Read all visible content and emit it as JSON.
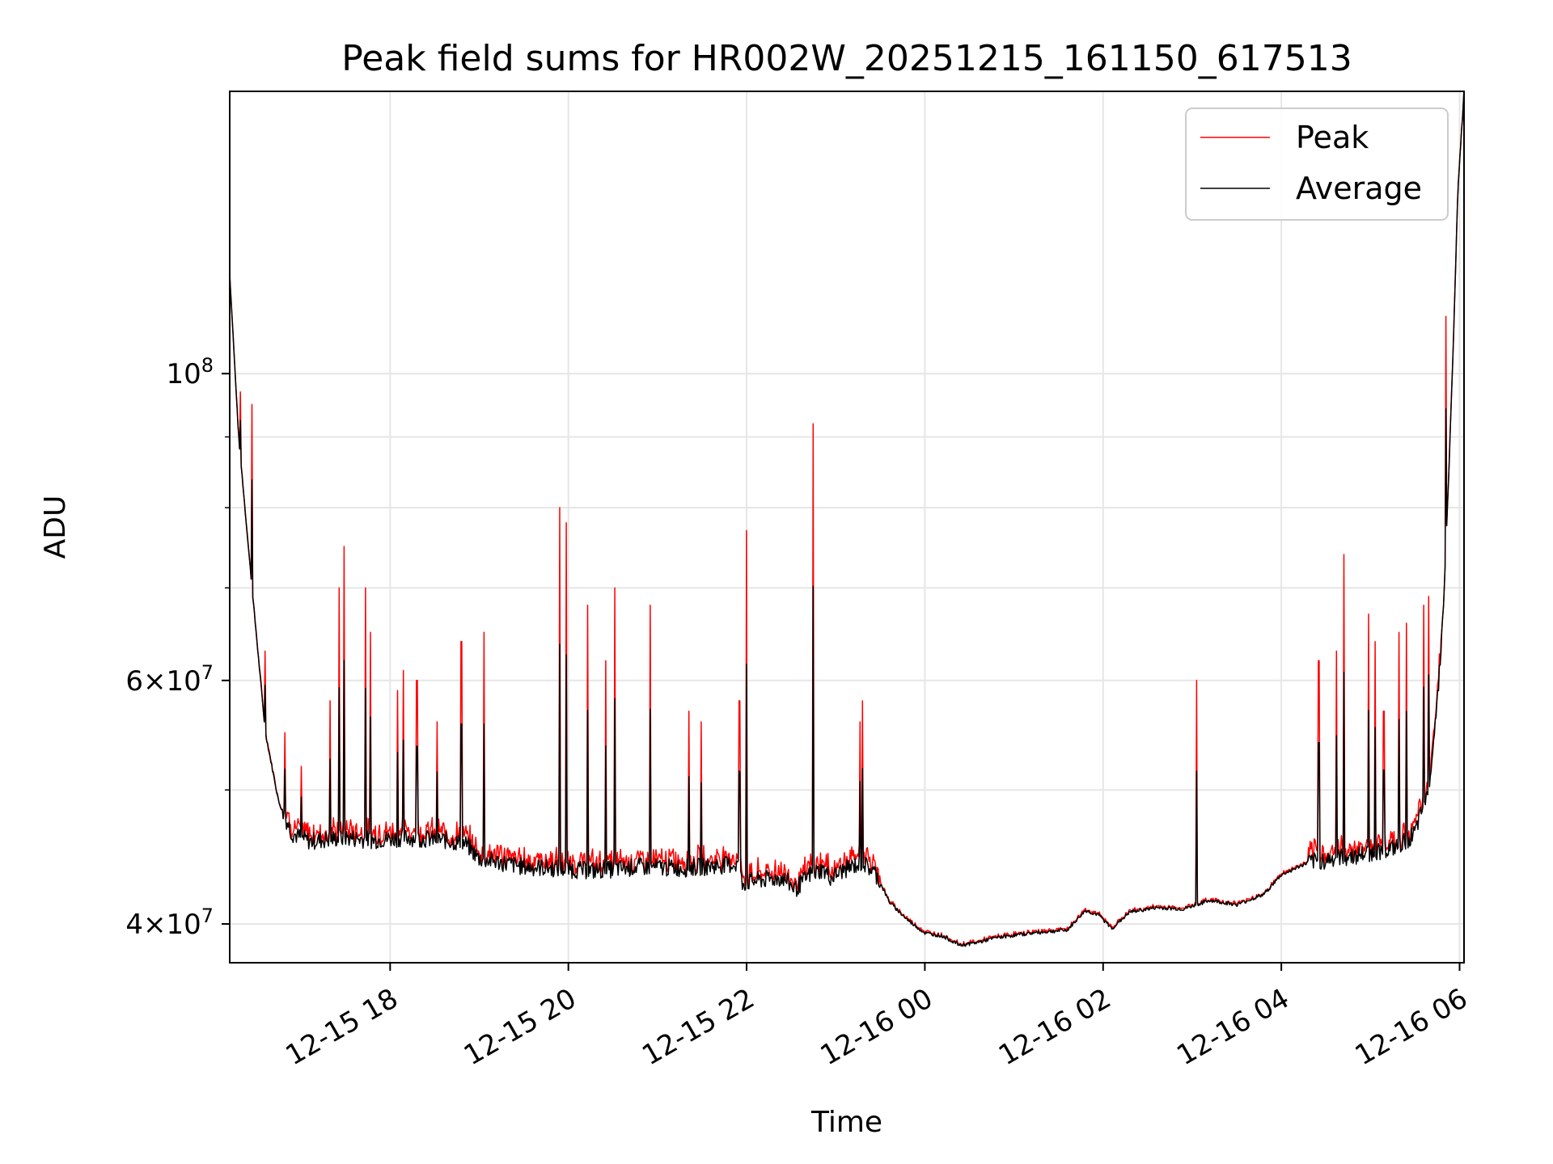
{
  "chart_data": {
    "type": "line",
    "title": "Peak field sums for HR002W_20251215_161150_617513",
    "xlabel": "Time",
    "ylabel": "ADU",
    "x_tick_labels": [
      "12-15 18",
      "12-15 20",
      "12-15 22",
      "12-16 00",
      "12-16 02",
      "12-16 04",
      "12-16 06"
    ],
    "x_tick_hours": [
      18,
      20,
      22,
      24,
      26,
      28,
      30
    ],
    "x_range_hours": [
      16.2,
      30.05
    ],
    "y_scale": "log",
    "y_range": [
      37500000,
      160000000
    ],
    "y_major_ticks": [
      {
        "value": 40000000,
        "mantissa": "4",
        "exponent": "7"
      },
      {
        "value": 60000000,
        "mantissa": "6",
        "exponent": "7"
      },
      {
        "value": 100000000,
        "mantissa": "",
        "exponent": "8"
      }
    ],
    "y_minor_ticks": [
      50000000,
      70000000,
      80000000,
      90000000
    ],
    "grid": true,
    "legend": {
      "position": "top-right",
      "entries": [
        {
          "label": "Peak",
          "color": "#ff0000"
        },
        {
          "label": "Average",
          "color": "#000000"
        }
      ]
    },
    "series": [
      {
        "name": "Average",
        "color": "#000000",
        "baseline_points": [
          [
            16.2,
            118000000
          ],
          [
            16.3,
            90000000
          ],
          [
            16.45,
            70000000
          ],
          [
            16.6,
            55000000
          ],
          [
            16.75,
            49000000
          ],
          [
            16.9,
            46500000
          ],
          [
            17.1,
            45900000
          ],
          [
            17.5,
            46200000
          ],
          [
            17.8,
            46000000
          ],
          [
            18.2,
            46200000
          ],
          [
            18.6,
            46000000
          ],
          [
            18.85,
            45700000
          ],
          [
            19.0,
            44600000
          ],
          [
            19.5,
            44000000
          ],
          [
            19.8,
            43900000
          ],
          [
            20.3,
            43700000
          ],
          [
            20.8,
            44000000
          ],
          [
            21.3,
            43900000
          ],
          [
            21.7,
            44100000
          ],
          [
            21.9,
            44200000
          ],
          [
            21.95,
            42800000
          ],
          [
            22.1,
            43000000
          ],
          [
            22.4,
            43200000
          ],
          [
            22.55,
            42400000
          ],
          [
            22.7,
            43400000
          ],
          [
            22.85,
            43800000
          ],
          [
            22.95,
            43200000
          ],
          [
            23.1,
            43800000
          ],
          [
            23.3,
            44300000
          ],
          [
            23.45,
            43500000
          ],
          [
            23.6,
            41500000
          ],
          [
            23.8,
            40300000
          ],
          [
            24.0,
            39400000
          ],
          [
            24.2,
            39200000
          ],
          [
            24.4,
            38600000
          ],
          [
            24.6,
            38800000
          ],
          [
            24.8,
            39100000
          ],
          [
            25.2,
            39400000
          ],
          [
            25.6,
            39600000
          ],
          [
            25.8,
            40900000
          ],
          [
            25.95,
            40600000
          ],
          [
            26.1,
            39700000
          ],
          [
            26.3,
            40800000
          ],
          [
            26.6,
            41100000
          ],
          [
            26.9,
            41000000
          ],
          [
            27.2,
            41600000
          ],
          [
            27.5,
            41300000
          ],
          [
            27.8,
            42000000
          ],
          [
            28.0,
            43400000
          ],
          [
            28.3,
            44300000
          ],
          [
            28.7,
            44700000
          ],
          [
            29.0,
            45000000
          ],
          [
            29.3,
            45400000
          ],
          [
            29.5,
            46500000
          ],
          [
            29.65,
            50000000
          ],
          [
            29.75,
            58000000
          ],
          [
            29.82,
            68000000
          ],
          [
            29.88,
            85000000
          ],
          [
            29.93,
            105000000
          ],
          [
            29.98,
            135000000
          ],
          [
            30.05,
            160000000
          ]
        ]
      },
      {
        "name": "Peak",
        "color": "#ff0000",
        "spikes": [
          [
            16.32,
            97000000
          ],
          [
            16.45,
            95000000
          ],
          [
            16.6,
            63000000
          ],
          [
            16.82,
            55000000
          ],
          [
            17.0,
            52000000
          ],
          [
            17.33,
            58000000
          ],
          [
            17.43,
            70000000
          ],
          [
            17.48,
            75000000
          ],
          [
            17.72,
            70000000
          ],
          [
            17.78,
            65000000
          ],
          [
            18.08,
            59000000
          ],
          [
            18.15,
            61000000
          ],
          [
            18.3,
            60000000
          ],
          [
            18.53,
            56000000
          ],
          [
            18.8,
            64000000
          ],
          [
            19.05,
            65000000
          ],
          [
            19.9,
            80000000
          ],
          [
            19.98,
            78000000
          ],
          [
            20.22,
            68000000
          ],
          [
            20.42,
            62000000
          ],
          [
            20.52,
            70000000
          ],
          [
            20.92,
            68000000
          ],
          [
            21.35,
            57000000
          ],
          [
            21.49,
            56000000
          ],
          [
            21.92,
            58000000
          ],
          [
            22.0,
            77000000
          ],
          [
            22.75,
            92000000
          ],
          [
            23.27,
            56000000
          ],
          [
            23.3,
            58000000
          ],
          [
            27.05,
            60000000
          ],
          [
            28.42,
            62000000
          ],
          [
            28.62,
            63000000
          ],
          [
            28.7,
            74000000
          ],
          [
            28.98,
            67000000
          ],
          [
            29.05,
            64000000
          ],
          [
            29.15,
            57000000
          ],
          [
            29.32,
            65000000
          ],
          [
            29.4,
            66000000
          ],
          [
            29.6,
            68000000
          ],
          [
            29.65,
            69000000
          ],
          [
            29.85,
            110000000
          ]
        ]
      }
    ]
  }
}
